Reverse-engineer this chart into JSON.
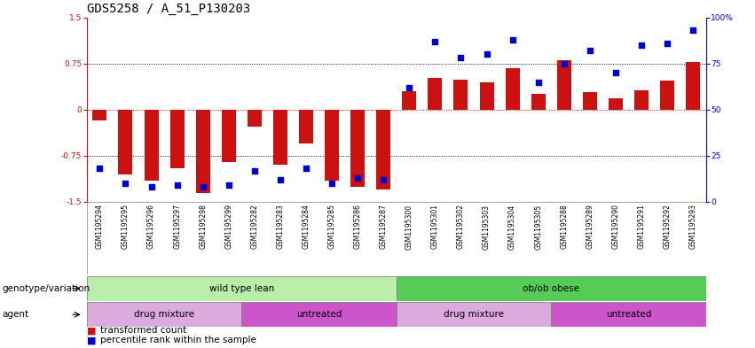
{
  "title": "GDS5258 / A_51_P130203",
  "samples": [
    "GSM1195294",
    "GSM1195295",
    "GSM1195296",
    "GSM1195297",
    "GSM1195298",
    "GSM1195299",
    "GSM1195282",
    "GSM1195283",
    "GSM1195284",
    "GSM1195285",
    "GSM1195286",
    "GSM1195287",
    "GSM1195300",
    "GSM1195301",
    "GSM1195302",
    "GSM1195303",
    "GSM1195304",
    "GSM1195305",
    "GSM1195288",
    "GSM1195289",
    "GSM1195290",
    "GSM1195291",
    "GSM1195292",
    "GSM1195293"
  ],
  "transformed_count": [
    -0.18,
    -1.05,
    -1.15,
    -0.95,
    -1.35,
    -0.85,
    -0.28,
    -0.9,
    -0.55,
    -1.15,
    -1.25,
    -1.3,
    0.3,
    0.52,
    0.48,
    0.45,
    0.68,
    0.25,
    0.8,
    0.28,
    0.18,
    0.32,
    0.47,
    0.77
  ],
  "percentile_rank": [
    18,
    10,
    8,
    9,
    8,
    9,
    17,
    12,
    18,
    10,
    13,
    12,
    62,
    87,
    78,
    80,
    88,
    65,
    75,
    82,
    70,
    85,
    86,
    93
  ],
  "ylim_left": [
    -1.5,
    1.5
  ],
  "ylim_right": [
    0,
    100
  ],
  "yticks_left": [
    -1.5,
    -0.75,
    0,
    0.75,
    1.5
  ],
  "yticks_right": [
    0,
    25,
    50,
    75,
    100
  ],
  "hlines": [
    0.75,
    0,
    -0.75
  ],
  "bar_color": "#cc1111",
  "dot_color": "#0000cc",
  "bar_width": 0.55,
  "dot_size": 22,
  "genotype_groups": [
    {
      "label": "wild type lean",
      "start": 0,
      "end": 12,
      "color": "#bbeeaa"
    },
    {
      "label": "ob/ob obese",
      "start": 12,
      "end": 24,
      "color": "#55cc55"
    }
  ],
  "agent_groups": [
    {
      "label": "drug mixture",
      "start": 0,
      "end": 6,
      "color": "#ddaadd"
    },
    {
      "label": "untreated",
      "start": 6,
      "end": 12,
      "color": "#cc55cc"
    },
    {
      "label": "drug mixture",
      "start": 12,
      "end": 18,
      "color": "#ddaadd"
    },
    {
      "label": "untreated",
      "start": 18,
      "end": 24,
      "color": "#cc55cc"
    }
  ],
  "legend_items": [
    {
      "label": "transformed count",
      "color": "#cc1111"
    },
    {
      "label": "percentile rank within the sample",
      "color": "#0000cc"
    }
  ],
  "row_labels": [
    "genotype/variation",
    "agent"
  ],
  "title_fontsize": 10,
  "tick_fontsize": 6.5,
  "sample_fontsize": 5.5,
  "label_fontsize": 7.5,
  "legend_fontsize": 7.5
}
